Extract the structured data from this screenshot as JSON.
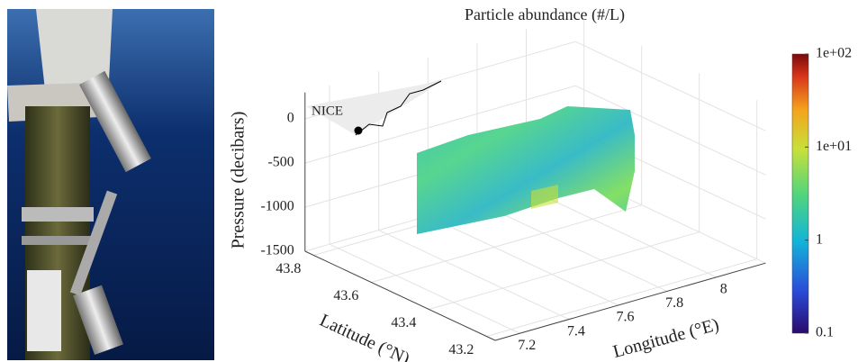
{
  "chart_data": {
    "type": "surface3d",
    "title": "Particle abundance (#/L)",
    "zlabel": "Pressure (decibars)",
    "ylabel": "Latitude (°N)",
    "xlabel": "Longitude (°E)",
    "annotation": "NICE",
    "xlim": [
      7.1,
      8.2
    ],
    "xticks": [
      7.2,
      7.4,
      7.6,
      7.8,
      8
    ],
    "ylim": [
      43.17,
      43.83
    ],
    "yticks": [
      43.2,
      43.4,
      43.6,
      43.8
    ],
    "zlim": [
      -1500,
      300
    ],
    "zticks": [
      0,
      -500,
      -1000,
      -1500
    ],
    "grid": true,
    "colorbar": {
      "scale": "log",
      "clim": [
        0.1,
        100
      ],
      "colormap": "jet",
      "ticks": [
        0.1,
        1,
        {
          "value": 10,
          "label": "1e+01"
        },
        {
          "value": 100,
          "label": "1e+02"
        }
      ]
    }
  }
}
